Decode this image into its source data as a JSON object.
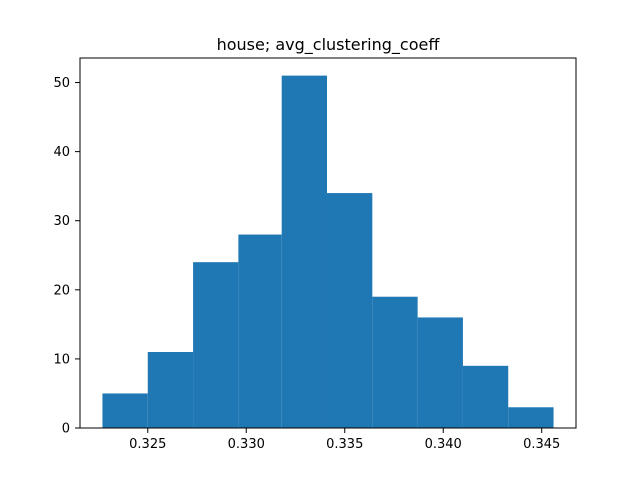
{
  "chart_data": {
    "type": "bar",
    "title": "house; avg_clustering_coeff",
    "xlabel": "",
    "ylabel": "",
    "bins": [
      {
        "x0": 0.3227,
        "x1": 0.325,
        "count": 5
      },
      {
        "x0": 0.325,
        "x1": 0.3273,
        "count": 11
      },
      {
        "x0": 0.3273,
        "x1": 0.3296,
        "count": 24
      },
      {
        "x0": 0.3296,
        "x1": 0.3318,
        "count": 28
      },
      {
        "x0": 0.3318,
        "x1": 0.3341,
        "count": 51
      },
      {
        "x0": 0.3341,
        "x1": 0.3364,
        "count": 34
      },
      {
        "x0": 0.3364,
        "x1": 0.3387,
        "count": 19
      },
      {
        "x0": 0.3387,
        "x1": 0.341,
        "count": 16
      },
      {
        "x0": 0.341,
        "x1": 0.3433,
        "count": 9
      },
      {
        "x0": 0.3433,
        "x1": 0.3456,
        "count": 3
      }
    ],
    "xlim": [
      0.32156,
      0.34674
    ],
    "ylim": [
      0,
      53.55
    ],
    "xticks": [
      "0.325",
      "0.330",
      "0.335",
      "0.340",
      "0.345"
    ],
    "yticks": [
      "0",
      "10",
      "20",
      "30",
      "40",
      "50"
    ],
    "grid": false,
    "legend": "none",
    "bar_color": "#1f77b4"
  }
}
